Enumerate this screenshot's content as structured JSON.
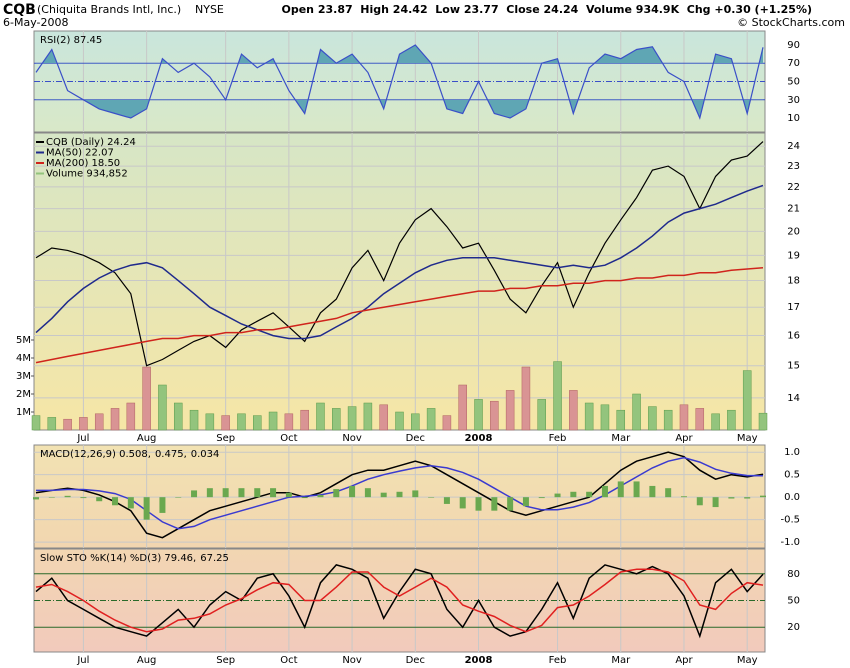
{
  "header": {
    "symbol": "CQB",
    "company": "(Chiquita Brands Intl, Inc.)",
    "exchange": "NYSE",
    "date": "6-May-2008",
    "quote": "Open 23.87  High 24.42  Low 23.77  Close 24.24  Volume 934.9K  Chg +0.30 (+1.25%)",
    "credit": "© StockCharts.com"
  },
  "chart_data": [
    {
      "type": "line",
      "legend": [
        "RSI(2) 87.45"
      ],
      "ylim": [
        -5.3,
        105.3
      ],
      "yticks": [
        10,
        30,
        50,
        70,
        90
      ],
      "fill_color": "#5fa6b4",
      "series": [
        {
          "color": "#3a4fc8",
          "values": [
            60,
            85,
            40,
            30,
            20,
            15,
            10,
            20,
            75,
            60,
            70,
            55,
            30,
            80,
            65,
            75,
            40,
            15,
            85,
            70,
            80,
            60,
            20,
            80,
            90,
            70,
            20,
            15,
            50,
            15,
            10,
            20,
            70,
            75,
            15,
            65,
            80,
            75,
            85,
            88,
            60,
            50,
            10,
            80,
            75,
            15,
            87.45
          ]
        }
      ]
    },
    {
      "type": "line",
      "log": true,
      "legend": [
        "CQB (Daily) 24.24",
        "MA(50) 22.07",
        "MA(200) 18.50",
        "Volume 934,852"
      ],
      "ylim": [
        13.07,
        24.69
      ],
      "yticks": [
        14,
        15,
        16,
        17,
        18,
        19,
        20,
        21,
        22,
        23,
        24
      ],
      "categories": [
        null,
        null,
        null,
        "Jul",
        null,
        null,
        null,
        "Aug",
        null,
        null,
        null,
        null,
        "Sep",
        null,
        null,
        null,
        "Oct",
        null,
        null,
        null,
        "Nov",
        null,
        null,
        null,
        "Dec",
        null,
        null,
        null,
        "2008",
        null,
        null,
        null,
        null,
        "Feb",
        null,
        null,
        null,
        "Mar",
        null,
        null,
        null,
        "Apr",
        null,
        null,
        null,
        "May",
        null
      ],
      "series": [
        {
          "color": "#000000",
          "values": [
            18.9,
            19.3,
            19.2,
            19.0,
            18.7,
            18.3,
            17.5,
            15.0,
            15.2,
            15.5,
            15.8,
            16.0,
            15.6,
            16.2,
            16.5,
            16.8,
            16.3,
            15.8,
            16.8,
            17.3,
            18.5,
            19.2,
            18.0,
            19.5,
            20.5,
            21.0,
            20.2,
            19.3,
            19.5,
            18.4,
            17.3,
            16.8,
            17.8,
            18.7,
            17.0,
            18.3,
            19.5,
            20.5,
            21.5,
            22.8,
            23.0,
            22.5,
            21.0,
            22.5,
            23.3,
            23.5,
            24.24
          ]
        },
        {
          "color": "#1f2a8c",
          "values": [
            16.1,
            16.6,
            17.2,
            17.7,
            18.1,
            18.4,
            18.6,
            18.7,
            18.5,
            18.0,
            17.5,
            17.0,
            16.7,
            16.4,
            16.2,
            16.0,
            15.9,
            15.9,
            16.0,
            16.3,
            16.6,
            17.0,
            17.5,
            17.9,
            18.3,
            18.6,
            18.8,
            18.9,
            18.9,
            18.9,
            18.8,
            18.7,
            18.6,
            18.5,
            18.6,
            18.5,
            18.6,
            18.9,
            19.3,
            19.8,
            20.4,
            20.8,
            21.0,
            21.2,
            21.5,
            21.8,
            22.07
          ]
        },
        {
          "color": "#d0241c",
          "values": [
            15.1,
            15.2,
            15.3,
            15.4,
            15.5,
            15.6,
            15.7,
            15.8,
            15.9,
            15.9,
            16.0,
            16.0,
            16.1,
            16.1,
            16.2,
            16.2,
            16.3,
            16.4,
            16.5,
            16.6,
            16.8,
            16.9,
            17.0,
            17.1,
            17.2,
            17.3,
            17.4,
            17.5,
            17.6,
            17.6,
            17.7,
            17.7,
            17.8,
            17.8,
            17.9,
            17.9,
            18.0,
            18.0,
            18.1,
            18.1,
            18.2,
            18.2,
            18.3,
            18.3,
            18.4,
            18.45,
            18.5
          ]
        }
      ],
      "volume": {
        "color_up": "#93c47d",
        "color_down": "#d99494",
        "ylim": [
          0,
          16500000
        ],
        "yticks": [
          {
            "value": 1000000,
            "label": "1M"
          },
          {
            "value": 2000000,
            "label": "2M"
          },
          {
            "value": 3000000,
            "label": "3M"
          },
          {
            "value": 4000000,
            "label": "4M"
          },
          {
            "value": 5000000,
            "label": "5M"
          }
        ],
        "values": [
          800000,
          700000,
          600000,
          700000,
          900000,
          1200000,
          1500000,
          3500000,
          2500000,
          1500000,
          1100000,
          900000,
          800000,
          900000,
          800000,
          1000000,
          900000,
          1100000,
          1500000,
          1200000,
          1300000,
          1500000,
          1400000,
          1000000,
          900000,
          1200000,
          800000,
          2500000,
          1700000,
          1600000,
          2200000,
          3500000,
          1700000,
          3800000,
          2200000,
          1500000,
          1400000,
          1100000,
          2000000,
          1300000,
          1100000,
          1400000,
          1200000,
          900000,
          1100000,
          3300000,
          934852
        ]
      }
    },
    {
      "type": "line",
      "legend": [
        "MACD(12,26,9) 0.508,",
        "0.475,",
        "0.034"
      ],
      "ylim": [
        -1.13,
        1.16
      ],
      "yticks": [
        {
          "value": -1,
          "label": "-1.0"
        },
        {
          "value": -0.5,
          "label": "-0.5"
        },
        {
          "value": 0,
          "label": "0.0"
        },
        {
          "value": 0.5,
          "label": "0.5"
        },
        {
          "value": 1,
          "label": "1.0"
        }
      ],
      "series": [
        {
          "color": "#000000",
          "values": [
            0.1,
            0.15,
            0.2,
            0.15,
            0.05,
            -0.1,
            -0.3,
            -0.8,
            -0.9,
            -0.7,
            -0.5,
            -0.3,
            -0.2,
            -0.1,
            0.0,
            0.1,
            0.1,
            0.0,
            0.1,
            0.3,
            0.5,
            0.6,
            0.6,
            0.7,
            0.8,
            0.7,
            0.5,
            0.3,
            0.1,
            -0.1,
            -0.3,
            -0.4,
            -0.3,
            -0.2,
            -0.1,
            0.0,
            0.3,
            0.6,
            0.8,
            0.9,
            1.0,
            0.9,
            0.6,
            0.4,
            0.5,
            0.45,
            0.508
          ]
        },
        {
          "color": "#3a3ad0",
          "values": [
            0.15,
            0.15,
            0.17,
            0.17,
            0.14,
            0.08,
            -0.05,
            -0.3,
            -0.55,
            -0.7,
            -0.65,
            -0.5,
            -0.4,
            -0.3,
            -0.2,
            -0.1,
            0.0,
            0.02,
            0.05,
            0.12,
            0.25,
            0.4,
            0.5,
            0.58,
            0.65,
            0.7,
            0.65,
            0.55,
            0.4,
            0.2,
            0.0,
            -0.2,
            -0.28,
            -0.28,
            -0.22,
            -0.12,
            0.05,
            0.25,
            0.45,
            0.65,
            0.8,
            0.88,
            0.78,
            0.62,
            0.53,
            0.48,
            0.475
          ]
        },
        {
          "type": "bar",
          "color": "#6aa84f",
          "values": [
            -0.05,
            0.0,
            0.03,
            -0.02,
            -0.09,
            -0.18,
            -0.25,
            -0.5,
            -0.35,
            0.0,
            0.15,
            0.2,
            0.2,
            0.2,
            0.2,
            0.2,
            0.1,
            -0.02,
            0.05,
            0.18,
            0.25,
            0.2,
            0.1,
            0.12,
            0.15,
            0.0,
            -0.15,
            -0.25,
            -0.3,
            -0.3,
            -0.3,
            -0.2,
            -0.02,
            0.08,
            0.12,
            0.12,
            0.25,
            0.35,
            0.35,
            0.25,
            0.2,
            0.02,
            -0.18,
            -0.22,
            -0.03,
            -0.03,
            0.034
          ]
        }
      ]
    },
    {
      "type": "line",
      "legend": [
        "Slow STO %K(14) %D(3) 79.46,",
        "67.25"
      ],
      "ylim": [
        -7.8,
        107.8
      ],
      "yticks": [
        20,
        50,
        80
      ],
      "categories": [
        null,
        null,
        null,
        "Jul",
        null,
        null,
        null,
        "Aug",
        null,
        null,
        null,
        null,
        "Sep",
        null,
        null,
        null,
        "Oct",
        null,
        null,
        null,
        "Nov",
        null,
        null,
        null,
        "Dec",
        null,
        null,
        null,
        "2008",
        null,
        null,
        null,
        null,
        "Feb",
        null,
        null,
        null,
        "Mar",
        null,
        null,
        null,
        "Apr",
        null,
        null,
        null,
        "May",
        null
      ],
      "series": [
        {
          "color": "#000000",
          "values": [
            60,
            75,
            50,
            40,
            30,
            20,
            15,
            10,
            25,
            40,
            20,
            45,
            60,
            50,
            75,
            80,
            55,
            20,
            70,
            90,
            85,
            75,
            30,
            60,
            85,
            80,
            40,
            20,
            50,
            20,
            10,
            15,
            40,
            70,
            30,
            75,
            90,
            85,
            80,
            88,
            80,
            55,
            10,
            70,
            85,
            60,
            79.46
          ]
        },
        {
          "color": "#e02020",
          "values": [
            65,
            68,
            60,
            50,
            38,
            28,
            20,
            15,
            18,
            28,
            30,
            35,
            45,
            52,
            62,
            70,
            68,
            50,
            50,
            65,
            82,
            82,
            65,
            55,
            65,
            75,
            65,
            45,
            38,
            32,
            22,
            15,
            22,
            42,
            45,
            55,
            68,
            82,
            85,
            85,
            82,
            72,
            45,
            40,
            58,
            70,
            67.25
          ]
        }
      ]
    }
  ]
}
